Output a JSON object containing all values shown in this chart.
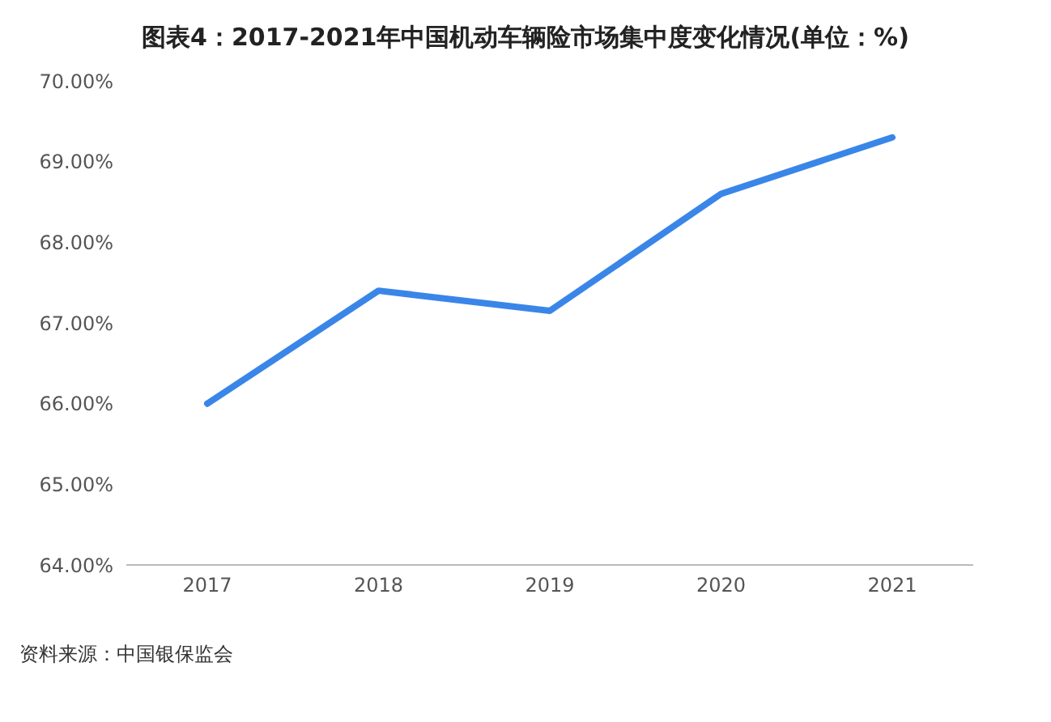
{
  "chart_data": {
    "type": "line",
    "title": "图表4：2017-2021年中国机动车辆险市场集中度变化情况(单位：%)",
    "categories": [
      "2017",
      "2018",
      "2019",
      "2020",
      "2021"
    ],
    "series": [
      {
        "color": "#3a86e8",
        "values": [
          66.0,
          67.4,
          67.15,
          68.6,
          69.3
        ]
      }
    ],
    "ylim": [
      64,
      70
    ],
    "yticks": [
      {
        "value": 64,
        "label": "64.00%"
      },
      {
        "value": 65,
        "label": "65.00%"
      },
      {
        "value": 66,
        "label": "66.00%"
      },
      {
        "value": 67,
        "label": "67.00%"
      },
      {
        "value": 68,
        "label": "68.00%"
      },
      {
        "value": 69,
        "label": "69.00%"
      },
      {
        "value": 70,
        "label": "70.00%"
      }
    ],
    "grid": false,
    "legend": false,
    "marker": "none",
    "line_style": "solid",
    "annotations": [
      "资料来源：中国银保监会"
    ]
  }
}
